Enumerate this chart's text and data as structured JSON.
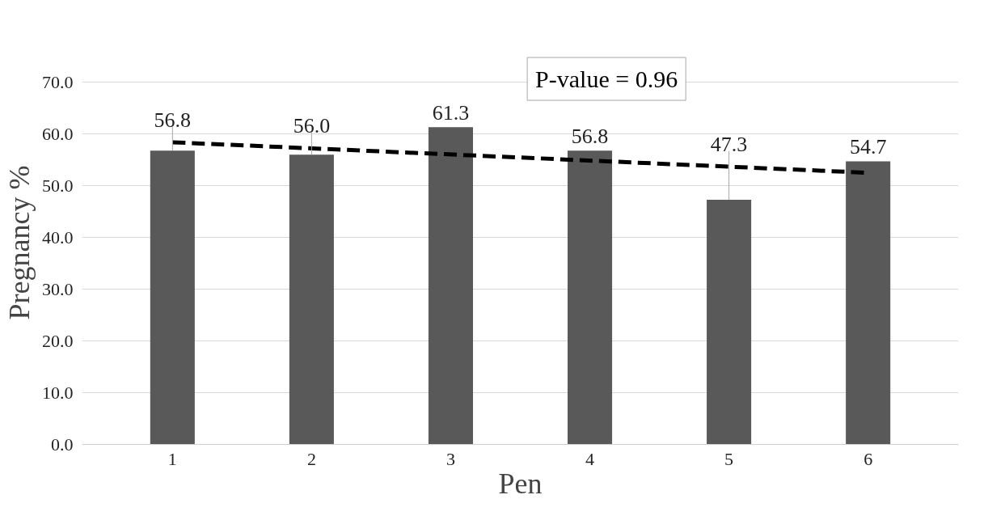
{
  "chart_data": {
    "type": "bar",
    "xlabel": "Pen",
    "ylabel": "Pregnancy %",
    "categories": [
      "1",
      "2",
      "3",
      "4",
      "5",
      "6"
    ],
    "series": [
      {
        "color": "#595959",
        "values": [
          56.8,
          56.0,
          61.3,
          56.8,
          47.3,
          54.7
        ],
        "value_labels": [
          "56.8",
          "56.0",
          "61.3",
          "56.8",
          "47.3",
          "54.7"
        ]
      },
      {
        "type": "line",
        "color": "#000000",
        "line_style": "dashed",
        "x": [
          "1",
          "6"
        ],
        "values": [
          58.4,
          52.5
        ]
      }
    ],
    "ylim": [
      0,
      70
    ],
    "yticks": [
      {
        "value": 0,
        "label": "0.0"
      },
      {
        "value": 10,
        "label": "10.0"
      },
      {
        "value": 20,
        "label": "20.0"
      },
      {
        "value": 30,
        "label": "30.0"
      },
      {
        "value": 40,
        "label": "40.0"
      },
      {
        "value": 50,
        "label": "50.0"
      },
      {
        "value": 60,
        "label": "60.0"
      },
      {
        "value": 70,
        "label": "70.0"
      }
    ],
    "grid": "y",
    "annotations": [
      "P-value = 0.96"
    ]
  }
}
